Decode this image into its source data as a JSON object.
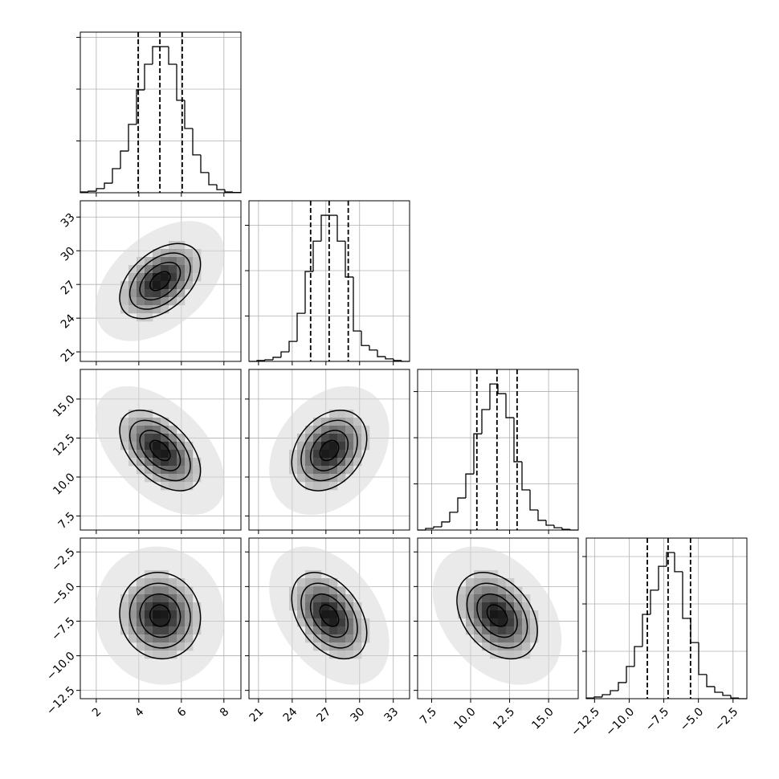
{
  "chart_data": {
    "type": "corner",
    "variables": [
      {
        "lim": [
          1.25,
          8.8
        ],
        "ticks": [
          2,
          4,
          6,
          8
        ]
      },
      {
        "lim": [
          20.15,
          34.45
        ],
        "ticks": [
          21,
          24,
          27,
          30,
          33
        ]
      },
      {
        "lim": [
          6.6,
          16.9
        ],
        "ticks": [
          7.5,
          {
            "value": 10,
            "label": "10.0"
          },
          12.5,
          {
            "value": 15,
            "label": "15.0"
          }
        ]
      },
      {
        "lim": [
          -13.1,
          -1.5
        ],
        "ticks": [
          {
            "value": -12.5,
            "label": "−12.5"
          },
          {
            "value": -10,
            "label": "−10.0"
          },
          {
            "value": -7.5,
            "label": "−7.5"
          },
          {
            "value": -5,
            "label": "−5.0"
          },
          {
            "value": -2.5,
            "label": "−2.5"
          }
        ]
      }
    ],
    "histograms": [
      {
        "bins": [
          1.25,
          1.6275,
          2.005,
          2.3825,
          2.76,
          3.1375,
          3.515,
          3.8925,
          4.27,
          4.6475,
          5.025,
          5.4025,
          5.78,
          6.1575,
          6.535,
          6.9125,
          7.29,
          7.6675,
          8.045,
          8.4225,
          8.8
        ],
        "counts": [
          15,
          30,
          80,
          185,
          465,
          805,
          1320,
          1985,
          2480,
          2820,
          2820,
          2480,
          1785,
          1240,
          730,
          390,
          155,
          60,
          15,
          5
        ],
        "quantiles": [
          3.97,
          4.99,
          6.04
        ],
        "ylim": [
          0,
          3100
        ],
        "yticks": [
          1000,
          2000,
          3000
        ]
      },
      {
        "bins": [
          20.15,
          20.865,
          21.58,
          22.295,
          23.01,
          23.725,
          24.44,
          25.155,
          25.87,
          26.585,
          27.3,
          28.015,
          28.73,
          29.445,
          30.16,
          30.875,
          31.59,
          32.305,
          33.02,
          33.735,
          34.45
        ],
        "counts": [
          0,
          20,
          35,
          90,
          210,
          440,
          1060,
          1980,
          2650,
          3220,
          3220,
          2650,
          1860,
          670,
          350,
          250,
          105,
          55,
          20,
          0
        ],
        "quantiles": [
          25.64,
          27.29,
          28.99
        ],
        "ylim": [
          0,
          3540
        ],
        "yticks": [
          1000,
          2000,
          3000
        ]
      },
      {
        "bins": [
          6.6,
          7.115,
          7.63,
          8.145,
          8.66,
          9.175,
          9.69,
          10.205,
          10.72,
          11.235,
          11.75,
          12.265,
          12.78,
          13.295,
          13.81,
          14.325,
          14.84,
          15.355,
          15.87,
          16.385,
          16.9
        ],
        "counts": [
          0,
          35,
          70,
          175,
          385,
          695,
          1215,
          2085,
          2610,
          3165,
          2955,
          2435,
          1480,
          870,
          435,
          210,
          105,
          50,
          15,
          0
        ],
        "quantiles": [
          10.4,
          11.69,
          12.98
        ],
        "ylim": [
          0,
          3480
        ],
        "yticks": [
          1000,
          2000,
          3000
        ]
      },
      {
        "bins": [
          -13.1,
          -12.52,
          -11.94,
          -11.36,
          -10.78,
          -10.2,
          -9.62,
          -9.04,
          -8.46,
          -7.88,
          -7.3,
          -6.72,
          -6.14,
          -5.56,
          -4.98,
          -4.4,
          -3.82,
          -3.24,
          -2.66,
          -2.08,
          -1.5
        ],
        "counts": [
          15,
          35,
          85,
          170,
          340,
          680,
          1100,
          1780,
          2290,
          2795,
          3085,
          2680,
          1695,
          1185,
          510,
          255,
          135,
          70,
          15,
          0
        ],
        "quantiles": [
          -8.69,
          -7.19,
          -5.57
        ],
        "ylim": [
          0,
          3390
        ],
        "yticks": [
          1000,
          2000,
          3000
        ]
      }
    ],
    "densities": [
      {
        "x": 0,
        "y": 1,
        "center": [
          5.0,
          27.3
        ],
        "sd": [
          0.95,
          1.67
        ],
        "corr": 0.45
      },
      {
        "x": 0,
        "y": 2,
        "center": [
          5.0,
          11.7
        ],
        "sd": [
          0.95,
          1.29
        ],
        "corr": -0.5
      },
      {
        "x": 1,
        "y": 2,
        "center": [
          27.3,
          11.7
        ],
        "sd": [
          1.67,
          1.29
        ],
        "corr": 0.3
      },
      {
        "x": 0,
        "y": 3,
        "center": [
          5.0,
          -7.1
        ],
        "sd": [
          0.95,
          1.56
        ],
        "corr": -0.05
      },
      {
        "x": 1,
        "y": 3,
        "center": [
          27.3,
          -7.1
        ],
        "sd": [
          1.67,
          1.56
        ],
        "corr": -0.4
      },
      {
        "x": 2,
        "y": 3,
        "center": [
          11.7,
          -7.1
        ],
        "sd": [
          1.29,
          1.56
        ],
        "corr": -0.35
      }
    ],
    "sigma_levels": [
      0.5,
      1,
      1.5,
      2
    ],
    "grid": true,
    "color": "#000000"
  }
}
